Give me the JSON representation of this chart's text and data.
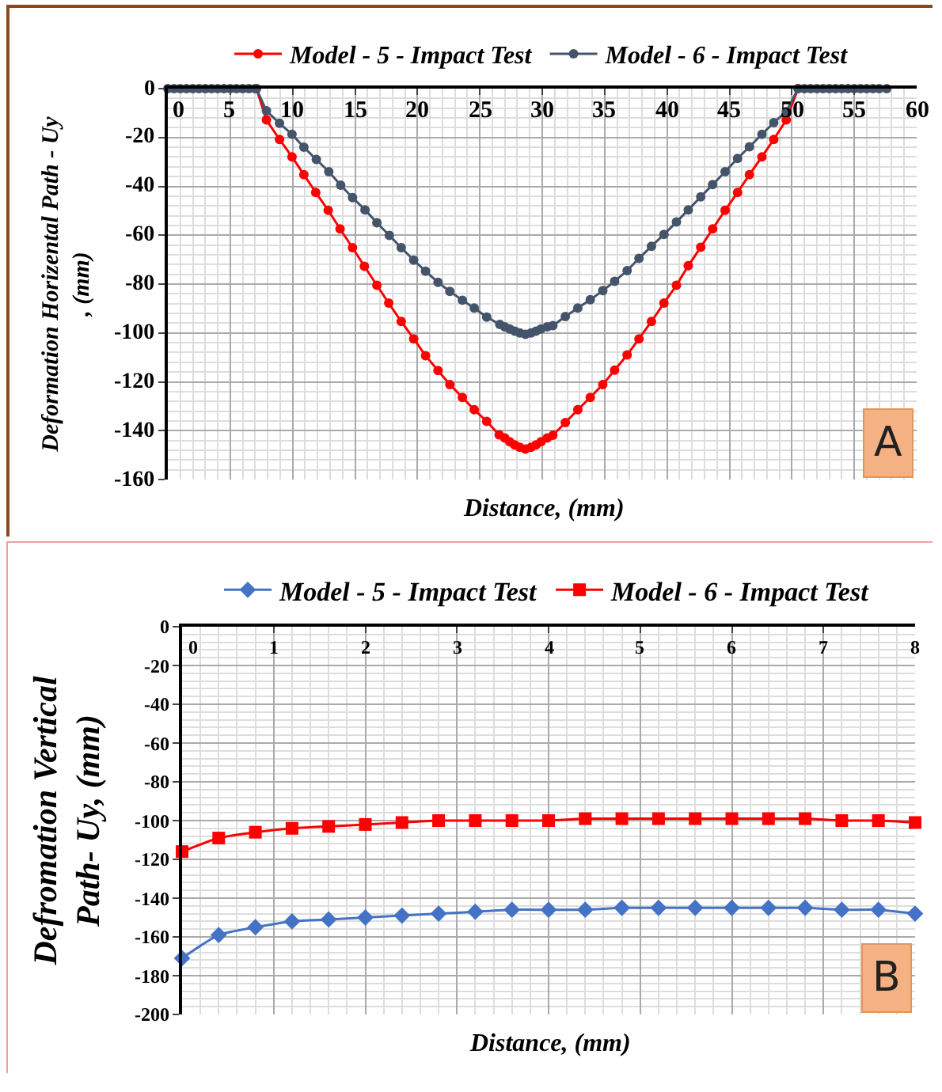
{
  "chart_data": [
    {
      "type": "line",
      "xlabel": "Distance, (mm)",
      "ylabel": "Deformation Horizental Path - Uy\n, (mm)",
      "xlim": [
        0,
        60
      ],
      "xticks": [
        0,
        5,
        10,
        15,
        20,
        25,
        30,
        35,
        40,
        45,
        50,
        55,
        60
      ],
      "ylim": [
        -160,
        0
      ],
      "yticks": [
        -160,
        -140,
        -120,
        -100,
        -80,
        -60,
        -40,
        -20,
        0
      ],
      "grid": true,
      "legend": "top",
      "line_style": "solid",
      "annotations": [
        "A"
      ],
      "series": [
        {
          "name": "Model - 5 - Impact Test",
          "color": "#ff0000",
          "marker": "circle",
          "x": [
            7.1,
            7.9,
            8.95,
            9.95,
            10.9,
            11.85,
            12.85,
            13.8,
            14.8,
            15.75,
            16.75,
            17.7,
            18.7,
            19.7,
            20.65,
            21.65,
            22.6,
            23.6,
            24.55,
            25.55,
            26.55,
            27,
            27.4,
            27.8,
            28.2,
            28.65,
            29.1,
            29.5,
            29.9,
            30.4,
            30.85,
            31.85,
            32.85,
            33.85,
            34.85,
            35.8,
            36.8,
            37.75,
            38.75,
            39.75,
            40.75,
            41.7,
            42.7,
            43.65,
            44.65,
            45.65,
            46.6,
            47.6,
            48.55,
            49.55,
            50.5
          ],
          "values": [
            0,
            -12.8,
            -20.8,
            -27.9,
            -35.2,
            -42.5,
            -49.8,
            -57.4,
            -65.1,
            -72.7,
            -80.5,
            -87.8,
            -95.3,
            -102.4,
            -109.3,
            -115.4,
            -121.1,
            -126.4,
            -131.4,
            -136.2,
            -141.7,
            -143,
            -144.5,
            -145.8,
            -146.8,
            -147.5,
            -146.8,
            -145.8,
            -144.5,
            -143,
            -141.9,
            -136.7,
            -131.4,
            -126.4,
            -121.1,
            -115.2,
            -109,
            -102.4,
            -95.3,
            -87.8,
            -80.5,
            -72.5,
            -64.9,
            -57.4,
            -49.8,
            -42.5,
            -35.2,
            -27.9,
            -20.8,
            -12.8,
            0
          ]
        },
        {
          "name": "Model - 6 - Impact Test",
          "color": "#44546a",
          "marker": "circle",
          "x": [
            0,
            0.5,
            1,
            1.5,
            2,
            2.5,
            3,
            3.5,
            4,
            4.5,
            5,
            5.5,
            6,
            6.5,
            7,
            7.1,
            7.9,
            8.95,
            9.95,
            10.9,
            11.9,
            12.9,
            13.85,
            14.8,
            15.8,
            16.75,
            17.75,
            18.7,
            19.7,
            20.65,
            21.65,
            22.6,
            23.6,
            24.55,
            25.55,
            26.6,
            27,
            27.4,
            27.8,
            28.2,
            28.65,
            29.1,
            29.5,
            29.9,
            30.4,
            30.85,
            31.85,
            32.85,
            33.85,
            34.85,
            35.8,
            36.8,
            37.75,
            38.75,
            39.75,
            40.75,
            41.7,
            42.7,
            43.65,
            44.65,
            45.65,
            46.6,
            47.6,
            48.55,
            49.55,
            50.5,
            51,
            51.5,
            52,
            52.5,
            53,
            53.5,
            54,
            54.5,
            55,
            55.5,
            56,
            56.5,
            57,
            57.6
          ],
          "values": [
            0,
            0,
            0,
            0,
            0,
            0,
            0,
            0,
            0,
            0,
            0,
            0,
            0,
            0,
            0,
            0,
            -9.1,
            -14.2,
            -18.7,
            -24,
            -29,
            -34,
            -39.5,
            -44.6,
            -49.6,
            -54.9,
            -60.1,
            -65.1,
            -70.2,
            -74.7,
            -79.3,
            -83,
            -86.6,
            -89.8,
            -93.5,
            -96.5,
            -97.5,
            -98.4,
            -99.3,
            -100,
            -100.6,
            -100,
            -99.3,
            -98.4,
            -97.5,
            -97,
            -93.3,
            -89.8,
            -86.4,
            -82.7,
            -78.9,
            -74.5,
            -69.5,
            -64.5,
            -59.7,
            -54.6,
            -49.6,
            -44.3,
            -39.3,
            -34,
            -28.6,
            -23.8,
            -18.7,
            -13.9,
            -9.4,
            0,
            0,
            0,
            0,
            0,
            0,
            0,
            0,
            0,
            0,
            0,
            0,
            0,
            0,
            0
          ]
        }
      ]
    },
    {
      "type": "line",
      "xlabel": "Distance, (mm)",
      "ylabel": "Defromation Vertical\nPath- Uy, (mm)",
      "xlim": [
        0,
        8
      ],
      "xticks": [
        0,
        1,
        2,
        3,
        4,
        5,
        6,
        7,
        8
      ],
      "ylim": [
        -200,
        0
      ],
      "yticks": [
        -200,
        -180,
        -160,
        -140,
        -120,
        -100,
        -80,
        -60,
        -40,
        -20,
        0
      ],
      "grid": true,
      "legend": "top",
      "line_style": "solid",
      "annotations": [
        "B"
      ],
      "x": [
        0,
        0.4,
        0.8,
        1.2,
        1.6,
        2,
        2.4,
        2.8,
        3.2,
        3.6,
        4,
        4.4,
        4.8,
        5.2,
        5.6,
        6,
        6.4,
        6.8,
        7.2,
        7.6,
        8
      ],
      "series": [
        {
          "name": "Model - 5 - Impact Test",
          "color": "#4472c4",
          "marker": "diamond",
          "values": [
            -171,
            -159,
            -155,
            -152,
            -151,
            -150,
            -149,
            -148,
            -147,
            -146,
            -146,
            -146,
            -145,
            -145,
            -145,
            -145,
            -145,
            -145,
            -146,
            -146,
            -148
          ]
        },
        {
          "name": "Model - 6 - Impact Test",
          "color": "#ff0000",
          "marker": "square",
          "values": [
            -116,
            -109,
            -106,
            -104,
            -103,
            -102,
            -101,
            -100,
            -100,
            -100,
            -100,
            -99,
            -99,
            -99,
            -99,
            -99,
            -99,
            -99,
            -100,
            -100,
            -101
          ]
        }
      ]
    }
  ]
}
